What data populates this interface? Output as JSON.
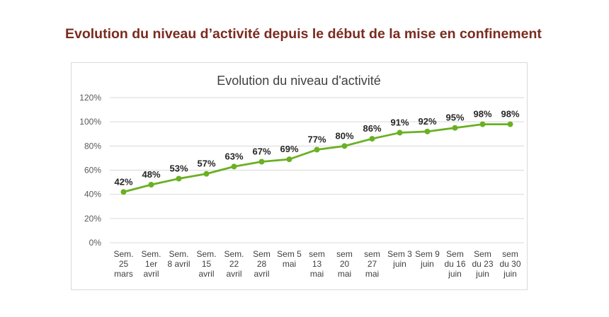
{
  "page": {
    "heading": "Evolution du niveau d’activité depuis le début de la mise en confinement"
  },
  "colors": {
    "heading": "#7b2b1f",
    "line": "#6ab023",
    "grid": "#d9d9d9"
  },
  "chart_data": {
    "type": "line",
    "title": "Evolution du niveau d'activité",
    "xlabel": "",
    "ylabel": "",
    "ylim": [
      0,
      120
    ],
    "yticks": [
      "0%",
      "20%",
      "40%",
      "60%",
      "80%",
      "100%",
      "120%"
    ],
    "grid": true,
    "legend": "none",
    "categories": [
      [
        "Sem.",
        "25",
        "mars"
      ],
      [
        "Sem.",
        "1er",
        "avril"
      ],
      [
        "Sem.",
        "8 avril"
      ],
      [
        "Sem.",
        "15",
        "avril"
      ],
      [
        "Sem.",
        "22",
        "avril"
      ],
      [
        "Sem",
        "28",
        "avril"
      ],
      [
        "Sem 5",
        "mai"
      ],
      [
        "sem",
        "13",
        "mai"
      ],
      [
        "sem",
        "20",
        "mai"
      ],
      [
        "sem",
        "27",
        "mai"
      ],
      [
        "Sem 3",
        "juin"
      ],
      [
        "Sem 9",
        "juin"
      ],
      [
        "Sem",
        "du 16",
        "juin"
      ],
      [
        "Sem",
        "du 23",
        "juin"
      ],
      [
        "sem",
        "du 30",
        "juin"
      ]
    ],
    "series": [
      {
        "name": "Niveau d'activité",
        "values": [
          42,
          48,
          53,
          57,
          63,
          67,
          69,
          77,
          80,
          86,
          91,
          92,
          95,
          98,
          98
        ],
        "labels": [
          "42%",
          "48%",
          "53%",
          "57%",
          "63%",
          "67%",
          "69%",
          "77%",
          "80%",
          "86%",
          "91%",
          "92%",
          "95%",
          "98%",
          "98%"
        ]
      }
    ]
  }
}
